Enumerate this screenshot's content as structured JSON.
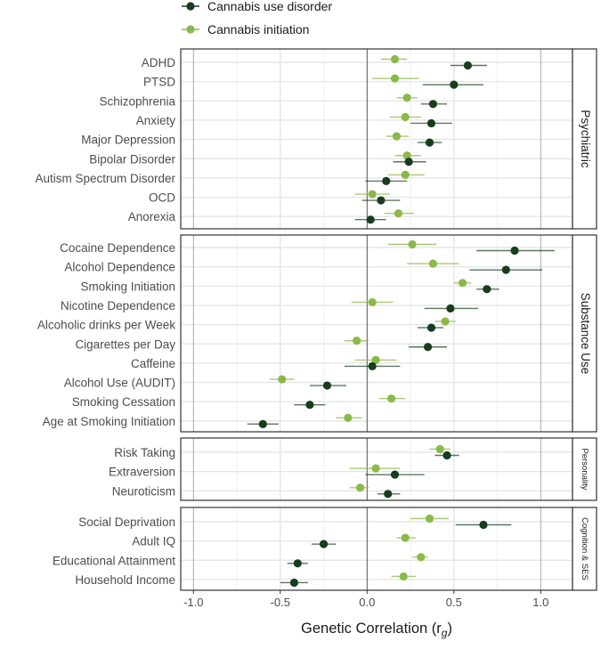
{
  "chart_data": {
    "type": "scatter",
    "subtype": "forest-plot",
    "xlabel": "Genetic Correlation (r",
    "xlabel_subscript": "g",
    "xlabel_close": ")",
    "xlim": [
      -1.1,
      1.2
    ],
    "xticks": [
      -1.0,
      -0.5,
      0.0,
      0.5,
      1.0
    ],
    "xtick_labels": [
      "-1.0",
      "-0.5",
      "0.0",
      "0.5",
      "1.0"
    ],
    "grid": true,
    "legend_position": "top-left",
    "series": [
      {
        "name": "Cannabis use disorder",
        "color": "#173d1e"
      },
      {
        "name": "Cannabis initiation",
        "color": "#8bb84a"
      }
    ],
    "panels": [
      {
        "name": "Psychiatric",
        "rows": [
          {
            "trait": "ADHD",
            "cud": [
              0.58,
              0.48,
              0.69
            ],
            "init": [
              0.16,
              0.08,
              0.23
            ]
          },
          {
            "trait": "PTSD",
            "cud": [
              0.5,
              0.32,
              0.67
            ],
            "init": [
              0.16,
              0.03,
              0.3
            ]
          },
          {
            "trait": "Schizophrenia",
            "cud": [
              0.38,
              0.31,
              0.46
            ],
            "init": [
              0.23,
              0.17,
              0.29
            ]
          },
          {
            "trait": "Anxiety",
            "cud": [
              0.37,
              0.25,
              0.49
            ],
            "init": [
              0.22,
              0.13,
              0.31
            ]
          },
          {
            "trait": "Major Depression",
            "cud": [
              0.36,
              0.29,
              0.43
            ],
            "init": [
              0.17,
              0.11,
              0.24
            ]
          },
          {
            "trait": "Bipolar Disorder",
            "cud": [
              0.24,
              0.15,
              0.34
            ],
            "init": [
              0.23,
              0.16,
              0.31
            ]
          },
          {
            "trait": "Autism Spectrum Disorder",
            "cud": [
              0.11,
              -0.01,
              0.23
            ],
            "init": [
              0.22,
              0.12,
              0.33
            ]
          },
          {
            "trait": "OCD",
            "cud": [
              0.08,
              -0.03,
              0.19
            ],
            "init": [
              0.03,
              -0.07,
              0.13
            ]
          },
          {
            "trait": "Anorexia",
            "cud": [
              0.02,
              -0.07,
              0.11
            ],
            "init": [
              0.18,
              0.1,
              0.27
            ]
          }
        ]
      },
      {
        "name": "Substance Use",
        "rows": [
          {
            "trait": "Cocaine Dependence",
            "cud": [
              0.85,
              0.63,
              1.08
            ],
            "init": [
              0.26,
              0.12,
              0.4
            ]
          },
          {
            "trait": "Alcohol Dependence",
            "cud": [
              0.8,
              0.59,
              1.01
            ],
            "init": [
              0.38,
              0.23,
              0.53
            ]
          },
          {
            "trait": "Smoking Initiation",
            "cud": [
              0.69,
              0.63,
              0.76
            ],
            "init": [
              0.55,
              0.5,
              0.6
            ]
          },
          {
            "trait": "Nicotine Dependence",
            "cud": [
              0.48,
              0.33,
              0.64
            ],
            "init": [
              0.03,
              -0.09,
              0.15
            ]
          },
          {
            "trait": "Alcoholic drinks per Week",
            "cud": [
              0.37,
              0.29,
              0.44
            ],
            "init": [
              0.45,
              0.39,
              0.51
            ]
          },
          {
            "trait": "Cigarettes per Day",
            "cud": [
              0.35,
              0.24,
              0.46
            ],
            "init": [
              -0.06,
              -0.13,
              0.01
            ]
          },
          {
            "trait": "Caffeine",
            "cud": [
              0.03,
              -0.13,
              0.19
            ],
            "init": [
              0.05,
              -0.07,
              0.17
            ]
          },
          {
            "trait": "Alcohol Use (AUDIT)",
            "cud": [
              -0.23,
              -0.33,
              -0.12
            ],
            "init": [
              -0.49,
              -0.56,
              -0.42
            ]
          },
          {
            "trait": "Smoking Cessation",
            "cud": [
              -0.33,
              -0.42,
              -0.24
            ],
            "init": [
              0.14,
              0.07,
              0.22
            ]
          },
          {
            "trait": "Age at Smoking Initiation",
            "cud": [
              -0.6,
              -0.69,
              -0.51
            ],
            "init": [
              -0.11,
              -0.18,
              -0.03
            ]
          }
        ]
      },
      {
        "name": "Personality",
        "rows": [
          {
            "trait": "Risk Taking",
            "cud": [
              0.46,
              0.39,
              0.53
            ],
            "init": [
              0.42,
              0.36,
              0.48
            ]
          },
          {
            "trait": "Extraversion",
            "cud": [
              0.16,
              -0.01,
              0.33
            ],
            "init": [
              0.05,
              -0.1,
              0.19
            ]
          },
          {
            "trait": "Neuroticism",
            "cud": [
              0.12,
              0.06,
              0.19
            ],
            "init": [
              -0.04,
              -0.1,
              0.01
            ]
          }
        ]
      },
      {
        "name": "Cognition & SES",
        "rows": [
          {
            "trait": "Social Deprivation",
            "cud": [
              0.67,
              0.51,
              0.83
            ],
            "init": [
              0.36,
              0.25,
              0.47
            ]
          },
          {
            "trait": "Adult IQ",
            "cud": [
              -0.25,
              -0.32,
              -0.18
            ],
            "init": [
              0.22,
              0.17,
              0.28
            ]
          },
          {
            "trait": "Educational Attainment",
            "cud": [
              -0.4,
              -0.46,
              -0.34
            ],
            "init": [
              0.31,
              0.26,
              0.35
            ]
          },
          {
            "trait": "Household Income",
            "cud": [
              -0.42,
              -0.5,
              -0.34
            ],
            "init": [
              0.21,
              0.14,
              0.28
            ]
          }
        ]
      }
    ]
  }
}
